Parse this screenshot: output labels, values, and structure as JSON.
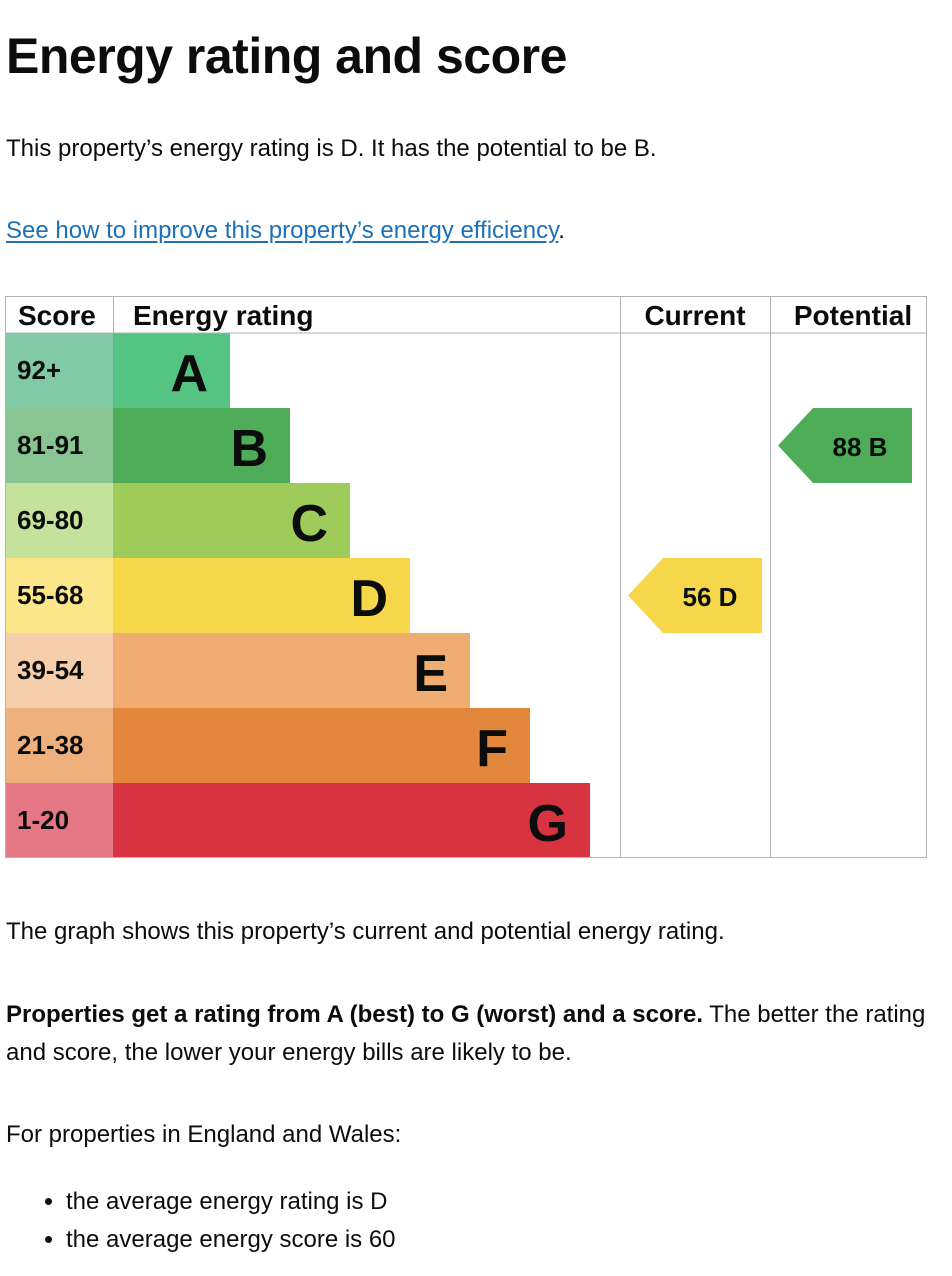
{
  "page": {
    "title": "Energy rating and score",
    "intro": "This property’s energy rating is D. It has the potential to be B.",
    "improve_link": "See how to improve this property’s energy efficiency",
    "improve_link_suffix": ".",
    "graph_desc": "The graph shows this property’s current and potential energy rating.",
    "scale_desc_bold": "Properties get a rating from A (best) to G (worst) and a score.",
    "scale_desc_rest": " The better the rating and score, the lower your energy bills are likely to be.",
    "avg_intro": "For properties in England and Wales:",
    "avg_items": [
      "the average energy rating is D",
      "the average energy score is 60"
    ]
  },
  "chart_data": {
    "type": "bar",
    "headers": [
      "Score",
      "Energy rating",
      "Current",
      "Potential"
    ],
    "bands": [
      {
        "letter": "A",
        "range": "92+",
        "color": "#55c482",
        "score_color": "#82c9a6"
      },
      {
        "letter": "B",
        "range": "81-91",
        "color": "#4fad5a",
        "score_color": "#89c592"
      },
      {
        "letter": "C",
        "range": "69-80",
        "color": "#9ecb59",
        "score_color": "#c4e29b"
      },
      {
        "letter": "D",
        "range": "55-68",
        "color": "#f6d749",
        "score_color": "#fbe78a"
      },
      {
        "letter": "E",
        "range": "39-54",
        "color": "#f0ad71",
        "score_color": "#f6ceab"
      },
      {
        "letter": "F",
        "range": "21-38",
        "color": "#e2873c",
        "score_color": "#eeb07d"
      },
      {
        "letter": "G",
        "range": "1-20",
        "color": "#d83341",
        "score_color": "#e67886"
      }
    ],
    "current": {
      "score": 56,
      "letter": "D",
      "label": "56  D"
    },
    "potential": {
      "score": 88,
      "letter": "B",
      "label": "88  B"
    }
  }
}
